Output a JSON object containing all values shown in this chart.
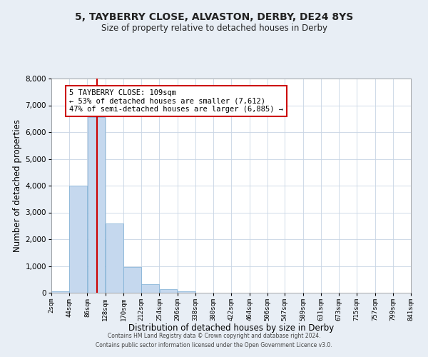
{
  "title": "5, TAYBERRY CLOSE, ALVASTON, DERBY, DE24 8YS",
  "subtitle": "Size of property relative to detached houses in Derby",
  "xlabel": "Distribution of detached houses by size in Derby",
  "ylabel": "Number of detached properties",
  "bin_edges": [
    2,
    44,
    86,
    128,
    170,
    212,
    254,
    296,
    338,
    380,
    422,
    464,
    506,
    547,
    589,
    631,
    673,
    715,
    757,
    799,
    841
  ],
  "bar_heights": [
    50,
    4000,
    6550,
    2600,
    960,
    330,
    130,
    50,
    0,
    0,
    0,
    0,
    0,
    0,
    0,
    0,
    0,
    0,
    0,
    0
  ],
  "bar_color": "#c5d8ee",
  "bar_edge_color": "#7aadd4",
  "property_line_x": 109,
  "property_line_color": "#cc0000",
  "ylim": [
    0,
    8000
  ],
  "yticks": [
    0,
    1000,
    2000,
    3000,
    4000,
    5000,
    6000,
    7000,
    8000
  ],
  "annotation_line1": "5 TAYBERRY CLOSE: 109sqm",
  "annotation_line2": "← 53% of detached houses are smaller (7,612)",
  "annotation_line3": "47% of semi-detached houses are larger (6,885) →",
  "annotation_box_color": "#cc0000",
  "footer_line1": "Contains HM Land Registry data © Crown copyright and database right 2024.",
  "footer_line2": "Contains public sector information licensed under the Open Government Licence v3.0.",
  "title_fontsize": 10,
  "subtitle_fontsize": 8.5,
  "tick_label_fontsize": 6.5,
  "axis_label_fontsize": 8.5,
  "annotation_fontsize": 7.5,
  "background_color": "#e8eef5",
  "plot_bg_color": "#ffffff",
  "grid_color": "#c8d4e4"
}
